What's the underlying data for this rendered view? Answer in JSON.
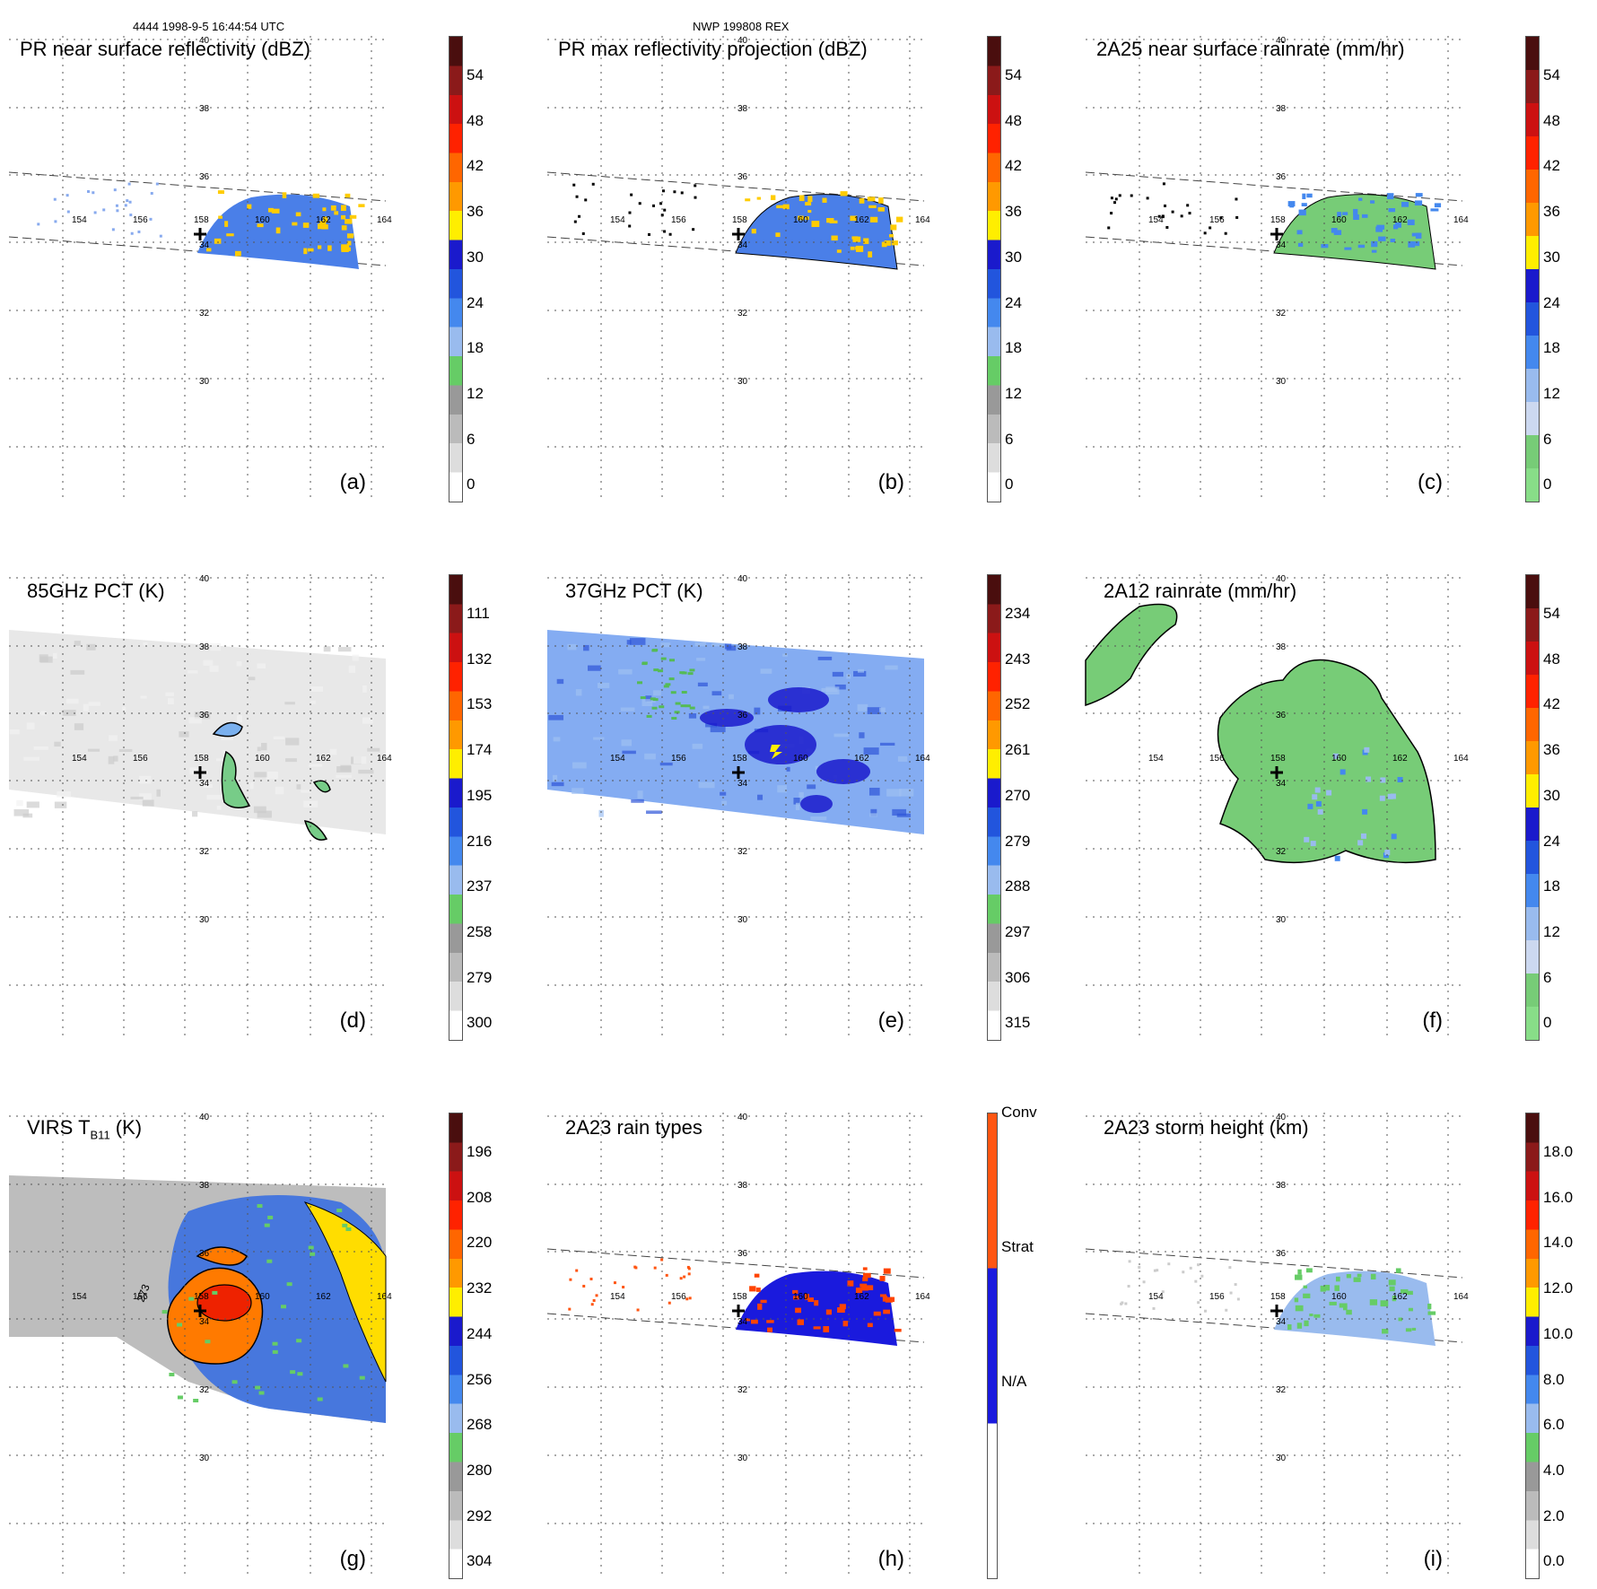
{
  "header": {
    "left": "4444 1998-9-5 16:44:54 UTC",
    "center": "NWP 199808 REX"
  },
  "panels": [
    {
      "id": "a",
      "title": "PR near surface reflectivity (dBZ)",
      "label": "(a)",
      "type": "swath1",
      "ticks": [
        "54",
        "48",
        "42",
        "36",
        "30",
        "24",
        "18",
        "12",
        "6",
        "0"
      ],
      "colors": [
        "#4a0e0e",
        "#8b1a1a",
        "#cc1111",
        "#ff2200",
        "#ff6600",
        "#ff9900",
        "#ffee00",
        "#1a1acc",
        "#2255dd",
        "#4488ee",
        "#99bbee",
        "#66cc66",
        "#999999",
        "#bbbbbb",
        "#dddddd",
        "#ffffff"
      ]
    },
    {
      "id": "b",
      "title": "PR max reflectivity projection (dBZ)",
      "label": "(b)",
      "type": "swath1",
      "ticks": [
        "54",
        "48",
        "42",
        "36",
        "30",
        "24",
        "18",
        "12",
        "6",
        "0"
      ],
      "colors": [
        "#4a0e0e",
        "#8b1a1a",
        "#cc1111",
        "#ff2200",
        "#ff6600",
        "#ff9900",
        "#ffee00",
        "#1a1acc",
        "#2255dd",
        "#4488ee",
        "#99bbee",
        "#66cc66",
        "#999999",
        "#bbbbbb",
        "#dddddd",
        "#ffffff"
      ]
    },
    {
      "id": "c",
      "title": "2A25 near surface rainrate (mm/hr)",
      "label": "(c)",
      "type": "swath1",
      "ticks": [
        "54",
        "48",
        "42",
        "36",
        "30",
        "24",
        "18",
        "12",
        "6",
        "0"
      ],
      "colors": [
        "#4a0e0e",
        "#8b1a1a",
        "#cc1111",
        "#ff2200",
        "#ff6600",
        "#ff9900",
        "#ffee00",
        "#1a1acc",
        "#2255dd",
        "#4488ee",
        "#99bbee",
        "#ccd8f0",
        "#77cc77",
        "#88dd88"
      ]
    },
    {
      "id": "d",
      "title": "85GHz PCT (K)",
      "label": "(d)",
      "type": "tmi",
      "ticks": [
        "111",
        "132",
        "153",
        "174",
        "195",
        "216",
        "237",
        "258",
        "279",
        "300"
      ],
      "colors": [
        "#4a0e0e",
        "#8b1a1a",
        "#cc1111",
        "#ff2200",
        "#ff6600",
        "#ff9900",
        "#ffee00",
        "#1a1acc",
        "#2255dd",
        "#4488ee",
        "#99bbee",
        "#66cc66",
        "#999999",
        "#bbbbbb",
        "#dddddd",
        "#ffffff"
      ]
    },
    {
      "id": "e",
      "title": "37GHz PCT (K)",
      "label": "(e)",
      "type": "tmi",
      "ticks": [
        "234",
        "243",
        "252",
        "261",
        "270",
        "279",
        "288",
        "297",
        "306",
        "315"
      ],
      "colors": [
        "#4a0e0e",
        "#8b1a1a",
        "#cc1111",
        "#ff2200",
        "#ff6600",
        "#ff9900",
        "#ffee00",
        "#1a1acc",
        "#2255dd",
        "#4488ee",
        "#99bbee",
        "#66cc66",
        "#999999",
        "#bbbbbb",
        "#dddddd",
        "#ffffff"
      ]
    },
    {
      "id": "f",
      "title": "2A12 rainrate (mm/hr)",
      "label": "(f)",
      "type": "tmi",
      "ticks": [
        "54",
        "48",
        "42",
        "36",
        "30",
        "24",
        "18",
        "12",
        "6",
        "0"
      ],
      "colors": [
        "#4a0e0e",
        "#8b1a1a",
        "#cc1111",
        "#ff2200",
        "#ff6600",
        "#ff9900",
        "#ffee00",
        "#1a1acc",
        "#2255dd",
        "#4488ee",
        "#99bbee",
        "#ccd8f0",
        "#77cc77",
        "#88dd88"
      ]
    },
    {
      "id": "g",
      "title_main": "VIRS T",
      "title_sub": "B11",
      "title_tail": " (K)",
      "label": "(g)",
      "type": "virs",
      "ticks": [
        "196",
        "208",
        "220",
        "232",
        "244",
        "256",
        "268",
        "280",
        "292",
        "304"
      ],
      "contour_label": "273",
      "colors": [
        "#4a0e0e",
        "#8b1a1a",
        "#cc1111",
        "#ff2200",
        "#ff6600",
        "#ff9900",
        "#ffee00",
        "#1a1acc",
        "#2255dd",
        "#4488ee",
        "#99bbee",
        "#66cc66",
        "#999999",
        "#bbbbbb",
        "#dddddd",
        "#ffffff"
      ]
    },
    {
      "id": "h",
      "title": "2A23 rain types",
      "label": "(h)",
      "type": "swath2",
      "ticks": [
        "Conv",
        "Strat",
        "N/A"
      ],
      "colors": [
        "#ff5511",
        "#1a1add",
        "#ffffff"
      ]
    },
    {
      "id": "i",
      "title": "2A23 storm height (km)",
      "label": "(i)",
      "type": "swath2",
      "ticks": [
        "18.0",
        "16.0",
        "14.0",
        "12.0",
        "10.0",
        "8.0",
        "6.0",
        "4.0",
        "2.0",
        "0.0"
      ],
      "colors": [
        "#4a0e0e",
        "#8b1a1a",
        "#cc1111",
        "#ff2200",
        "#ff6600",
        "#ff9900",
        "#ffee00",
        "#1a1acc",
        "#2255dd",
        "#4488ee",
        "#99bbee",
        "#66cc66",
        "#999999",
        "#bbbbbb",
        "#dddddd",
        "#ffffff"
      ]
    }
  ],
  "map_labels": {
    "lat": [
      "40",
      "38",
      "36",
      "34",
      "32",
      "30"
    ],
    "lon": [
      "154",
      "156",
      "158",
      "160",
      "162",
      "164"
    ]
  }
}
